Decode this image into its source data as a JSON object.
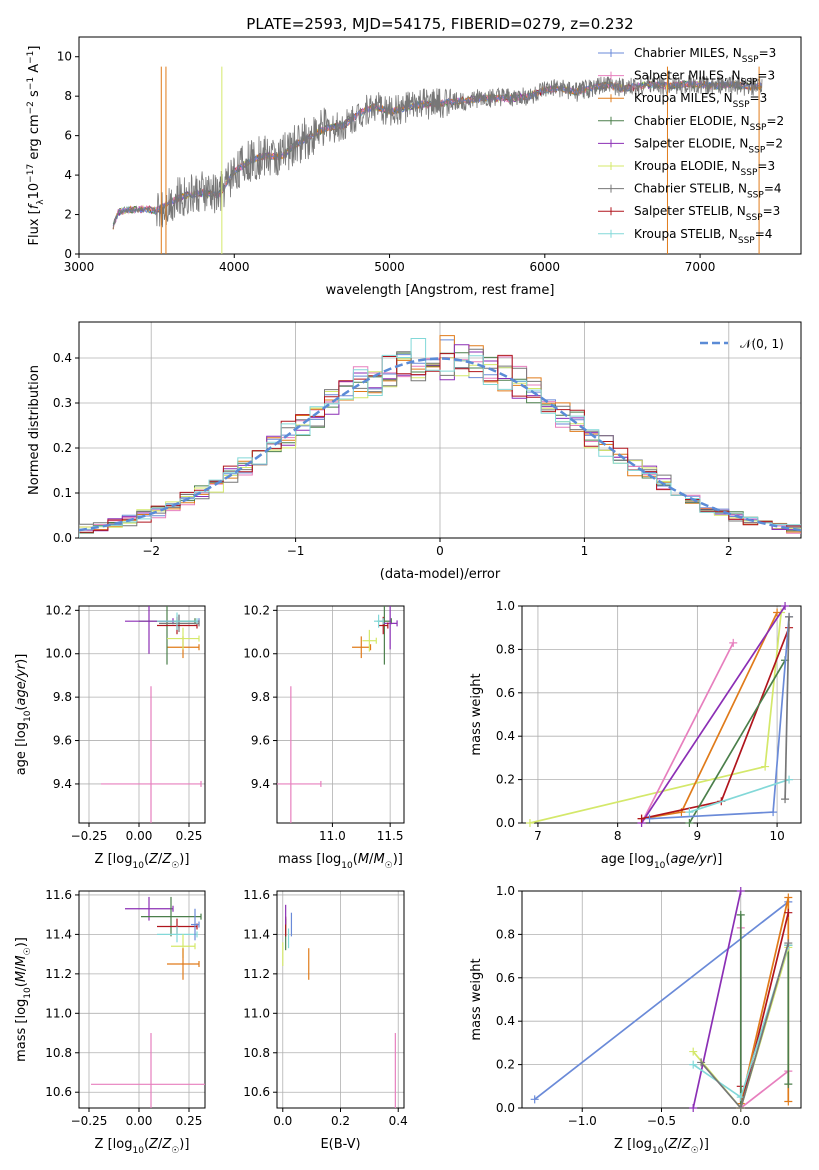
{
  "title": "PLATE=2593, MJD=54175, FIBERID=0279, z=0.232",
  "colors": {
    "chabrier_miles": "#6a8ad8",
    "salpeter_miles": "#e77fbe",
    "kroupa_miles": "#e07b1a",
    "chabrier_elodie": "#4b7f4b",
    "salpeter_elodie": "#8b2fb5",
    "kroupa_elodie": "#d4e86a",
    "chabrier_stelib": "#777777",
    "salpeter_stelib": "#b0151d",
    "kroupa_stelib": "#82d8d8",
    "normal": "#5b8bd6"
  },
  "chart_data": [
    {
      "type": "line",
      "id": "spectrum",
      "xlabel": "wavelength [Angstrom, rest frame]",
      "ylabel": "Flux [f_λ 10^-17 erg cm^-2 s^-1 A^-1]",
      "xlim": [
        3000,
        7650
      ],
      "ylim": [
        0,
        11
      ],
      "xticks": [
        "3000",
        "4000",
        "5000",
        "6000",
        "7000"
      ],
      "yticks": [
        "0",
        "2",
        "4",
        "6",
        "8",
        "10"
      ],
      "legend_position": "right",
      "legend": [
        {
          "name": "Chabrier MILES",
          "nssp": "3"
        },
        {
          "name": "Salpeter MILES",
          "nssp": "3"
        },
        {
          "name": "Kroupa MILES",
          "nssp": "3"
        },
        {
          "name": "Chabrier ELODIE",
          "nssp": "2"
        },
        {
          "name": "Salpeter ELODIE",
          "nssp": "2"
        },
        {
          "name": "Kroupa ELODIE",
          "nssp": "3"
        },
        {
          "name": "Chabrier STELIB",
          "nssp": "4"
        },
        {
          "name": "Salpeter STELIB",
          "nssp": "3"
        },
        {
          "name": "Kroupa STELIB",
          "nssp": "4"
        }
      ],
      "continuum": [
        [
          3220,
          1.4
        ],
        [
          3250,
          2.1
        ],
        [
          3300,
          2.2
        ],
        [
          3400,
          2.3
        ],
        [
          3500,
          2.2
        ],
        [
          3600,
          2.7
        ],
        [
          3700,
          3.0
        ],
        [
          3800,
          3.1
        ],
        [
          3900,
          3.0
        ],
        [
          4000,
          4.2
        ],
        [
          4100,
          4.7
        ],
        [
          4200,
          5.0
        ],
        [
          4300,
          4.9
        ],
        [
          4400,
          5.6
        ],
        [
          4500,
          6.0
        ],
        [
          4600,
          6.4
        ],
        [
          4700,
          6.5
        ],
        [
          4800,
          7.1
        ],
        [
          4900,
          7.5
        ],
        [
          5000,
          7.2
        ],
        [
          5100,
          7.4
        ],
        [
          5200,
          7.6
        ],
        [
          5300,
          7.6
        ],
        [
          5400,
          7.7
        ],
        [
          5500,
          7.8
        ],
        [
          5600,
          7.9
        ],
        [
          5700,
          7.9
        ],
        [
          5800,
          7.9
        ],
        [
          5900,
          8.0
        ],
        [
          6000,
          8.3
        ],
        [
          6100,
          8.4
        ],
        [
          6200,
          8.2
        ],
        [
          6300,
          8.4
        ],
        [
          6400,
          8.6
        ],
        [
          6500,
          8.4
        ],
        [
          6600,
          8.5
        ],
        [
          6700,
          8.6
        ],
        [
          6800,
          8.5
        ],
        [
          6900,
          8.6
        ],
        [
          7000,
          8.6
        ],
        [
          7100,
          8.5
        ],
        [
          7200,
          8.6
        ],
        [
          7300,
          8.5
        ],
        [
          7400,
          8.5
        ]
      ]
    },
    {
      "type": "histogram",
      "id": "residuals",
      "xlabel": "(data-model)/error",
      "ylabel": "Normed distribution",
      "xlim": [
        -2.5,
        2.5
      ],
      "ylim": [
        0,
        0.48
      ],
      "xticks": [
        "−2",
        "−1",
        "0",
        "1",
        "2"
      ],
      "yticks": [
        "0.0",
        "0.1",
        "0.2",
        "0.3",
        "0.4"
      ],
      "legend_position": "top-right",
      "legend": [
        "𝒩(0, 1)"
      ],
      "bin_width": 0.1
    },
    {
      "type": "scatter",
      "id": "z_age",
      "xlabel": "Z [log10(Z/Z☉)]",
      "ylabel": "age [log10(age/yr)]",
      "xlim": [
        -0.3,
        0.33
      ],
      "ylim": [
        9.22,
        10.22
      ],
      "xticks": [
        "−0.25",
        "0.00",
        "0.25"
      ],
      "yticks": [
        "9.4",
        "9.6",
        "9.8",
        "10.0",
        "10.2"
      ],
      "points": [
        {
          "model": "salpeter_miles",
          "x": 0.06,
          "xerr": 0.25,
          "y": 9.4,
          "yerr": 0.45
        },
        {
          "model": "chabrier_miles",
          "x": 0.2,
          "xerr": 0.1,
          "y": 10.15,
          "yerr": 0.03
        },
        {
          "model": "kroupa_miles",
          "x": 0.22,
          "xerr": 0.08,
          "y": 10.03,
          "yerr": 0.05
        },
        {
          "model": "chabrier_elodie",
          "x": 0.14,
          "xerr": 0.14,
          "y": 10.15,
          "yerr": 0.2
        },
        {
          "model": "salpeter_elodie",
          "x": 0.05,
          "xerr": 0.12,
          "y": 10.15,
          "yerr": 0.15
        },
        {
          "model": "kroupa_elodie",
          "x": 0.22,
          "xerr": 0.08,
          "y": 10.07,
          "yerr": 0.05
        },
        {
          "model": "chabrier_stelib",
          "x": 0.2,
          "xerr": 0.1,
          "y": 10.14,
          "yerr": 0.04
        },
        {
          "model": "salpeter_stelib",
          "x": 0.19,
          "xerr": 0.1,
          "y": 10.13,
          "yerr": 0.04
        },
        {
          "model": "kroupa_stelib",
          "x": 0.19,
          "xerr": 0.1,
          "y": 10.15,
          "yerr": 0.04
        }
      ]
    },
    {
      "type": "scatter",
      "id": "mass_age",
      "xlabel": "mass [log10(M/M☉)]",
      "ylabel": "",
      "xlim": [
        10.52,
        11.62
      ],
      "ylim": [
        9.22,
        10.22
      ],
      "xticks": [
        "11.0",
        "11.5"
      ],
      "yticks": [
        "9.4",
        "9.6",
        "9.8",
        "10.0",
        "10.2"
      ],
      "points": [
        {
          "model": "salpeter_miles",
          "x": 10.64,
          "xerr": 0.26,
          "y": 9.4,
          "yerr": 0.45
        },
        {
          "model": "kroupa_miles",
          "x": 11.25,
          "xerr": 0.08,
          "y": 10.03,
          "yerr": 0.05
        },
        {
          "model": "kroupa_elodie",
          "x": 11.32,
          "xerr": 0.06,
          "y": 10.06,
          "yerr": 0.05
        },
        {
          "model": "chabrier_elodie",
          "x": 11.45,
          "xerr": 0.06,
          "y": 10.15,
          "yerr": 0.2
        },
        {
          "model": "salpeter_elodie",
          "x": 11.5,
          "xerr": 0.06,
          "y": 10.14,
          "yerr": 0.12
        },
        {
          "model": "salpeter_stelib",
          "x": 11.44,
          "xerr": 0.04,
          "y": 10.13,
          "yerr": 0.04
        },
        {
          "model": "kroupa_stelib",
          "x": 11.4,
          "xerr": 0.04,
          "y": 10.15,
          "yerr": 0.03
        }
      ]
    },
    {
      "type": "line",
      "id": "age_weight",
      "xlabel": "age [log10(age/yr)]",
      "ylabel": "mass weight",
      "xlim": [
        6.8,
        10.3
      ],
      "ylim": [
        0,
        1.0
      ],
      "xticks": [
        "7",
        "8",
        "9",
        "10"
      ],
      "yticks": [
        "0.0",
        "0.2",
        "0.4",
        "0.6",
        "0.8",
        "1.0"
      ],
      "series": [
        {
          "model": "kroupa_elodie",
          "x": [
            6.9,
            9.85,
            10.05
          ],
          "y": [
            0.0,
            0.26,
            0.97
          ]
        },
        {
          "model": "salpeter_miles",
          "x": [
            8.3,
            9.45
          ],
          "y": [
            0.0,
            0.83
          ]
        },
        {
          "model": "kroupa_miles",
          "x": [
            8.3,
            8.8,
            10.0
          ],
          "y": [
            0.02,
            0.05,
            0.97
          ]
        },
        {
          "model": "salpeter_elodie",
          "x": [
            8.3,
            10.1
          ],
          "y": [
            0.0,
            1.0
          ]
        },
        {
          "model": "salpeter_stelib",
          "x": [
            8.3,
            9.3,
            10.15
          ],
          "y": [
            0.02,
            0.1,
            0.9
          ]
        },
        {
          "model": "chabrier_elodie",
          "x": [
            8.9,
            10.1
          ],
          "y": [
            0.0,
            0.75
          ]
        },
        {
          "model": "chabrier_miles",
          "x": [
            8.4,
            9.95,
            10.15
          ],
          "y": [
            0.02,
            0.05,
            0.95
          ]
        },
        {
          "model": "kroupa_stelib",
          "x": [
            8.9,
            10.15
          ],
          "y": [
            0.05,
            0.2
          ]
        },
        {
          "model": "chabrier_stelib",
          "x": [
            10.1,
            10.15
          ],
          "y": [
            0.11,
            0.95
          ]
        }
      ]
    },
    {
      "type": "scatter",
      "id": "z_mass",
      "xlabel": "Z [log10(Z/Z☉)]",
      "ylabel": "mass [log10(M/M☉)]",
      "xlim": [
        -0.3,
        0.33
      ],
      "ylim": [
        10.52,
        11.62
      ],
      "xticks": [
        "−0.25",
        "0.00",
        "0.25"
      ],
      "yticks": [
        "10.6",
        "10.8",
        "11.0",
        "11.2",
        "11.4",
        "11.6"
      ],
      "points": [
        {
          "model": "salpeter_miles",
          "x": 0.06,
          "xerr": 0.3,
          "y": 10.64,
          "yerr": 0.26
        },
        {
          "model": "salpeter_elodie",
          "x": 0.05,
          "xerr": 0.12,
          "y": 11.53,
          "yerr": 0.06
        },
        {
          "model": "chabrier_elodie",
          "x": 0.16,
          "xerr": 0.15,
          "y": 11.49,
          "yerr": 0.1
        },
        {
          "model": "salpeter_stelib",
          "x": 0.19,
          "xerr": 0.1,
          "y": 11.44,
          "yerr": 0.04
        },
        {
          "model": "kroupa_stelib",
          "x": 0.19,
          "xerr": 0.1,
          "y": 11.4,
          "yerr": 0.04
        },
        {
          "model": "kroupa_elodie",
          "x": 0.22,
          "xerr": 0.06,
          "y": 11.34,
          "yerr": 0.06
        },
        {
          "model": "kroupa_miles",
          "x": 0.22,
          "xerr": 0.08,
          "y": 11.25,
          "yerr": 0.08
        },
        {
          "model": "chabrier_miles",
          "x": 0.28,
          "xerr": 0.02,
          "y": 11.45,
          "yerr": 0.08
        }
      ]
    },
    {
      "type": "scatter",
      "id": "ebv_mass",
      "xlabel": "E(B-V)",
      "ylabel": "",
      "xlim": [
        -0.02,
        0.42
      ],
      "ylim": [
        10.52,
        11.62
      ],
      "xticks": [
        "0.0",
        "0.2",
        "0.4"
      ],
      "yticks": [
        "10.6",
        "10.8",
        "11.0",
        "11.2",
        "11.4",
        "11.6"
      ],
      "points": [
        {
          "model": "salpeter_miles",
          "x": 0.39,
          "y": 10.64,
          "yerr": 0.26
        },
        {
          "model": "kroupa_miles",
          "x": 0.09,
          "y": 11.25,
          "yerr": 0.08
        },
        {
          "model": "kroupa_elodie",
          "x": 0.0,
          "y": 11.3,
          "yerr": 0.06
        },
        {
          "model": "chabrier_elodie",
          "x": 0.01,
          "y": 11.4,
          "yerr": 0.08
        },
        {
          "model": "salpeter_stelib",
          "x": 0.01,
          "y": 11.44,
          "yerr": 0.05
        },
        {
          "model": "kroupa_stelib",
          "x": 0.02,
          "y": 11.38,
          "yerr": 0.05
        },
        {
          "model": "chabrier_miles",
          "x": 0.03,
          "y": 11.45,
          "yerr": 0.06
        },
        {
          "model": "salpeter_elodie",
          "x": 0.01,
          "y": 11.5,
          "yerr": 0.05
        }
      ]
    },
    {
      "type": "line",
      "id": "z_weight",
      "xlabel": "Z [log10(Z/Z☉)]",
      "ylabel": "mass weight",
      "xlim": [
        -1.38,
        0.38
      ],
      "ylim": [
        0,
        1.0
      ],
      "xticks": [
        "−1.0",
        "−0.5",
        "0.0"
      ],
      "yticks": [
        "0.0",
        "0.2",
        "0.4",
        "0.6",
        "0.8",
        "1.0"
      ],
      "series": [
        {
          "model": "chabrier_miles",
          "x": [
            -1.3,
            0.3
          ],
          "y": [
            0.04,
            0.95
          ]
        },
        {
          "model": "salpeter_elodie",
          "x": [
            -0.3,
            0.0
          ],
          "y": [
            0.0,
            1.0
          ]
        },
        {
          "model": "salpeter_miles",
          "x": [
            0.0,
            0.0,
            0.3
          ],
          "y": [
            0.83,
            0.0,
            0.17
          ]
        },
        {
          "model": "kroupa_miles",
          "x": [
            0.0,
            0.3,
            0.3
          ],
          "y": [
            0.02,
            0.97,
            0.03
          ]
        },
        {
          "model": "salpeter_stelib",
          "x": [
            0.0,
            0.0,
            0.3
          ],
          "y": [
            0.1,
            0.0,
            0.9
          ]
        },
        {
          "model": "chabrier_elodie",
          "x": [
            0.0,
            0.0,
            0.3,
            0.3
          ],
          "y": [
            0.89,
            0.0,
            0.75,
            0.11
          ]
        },
        {
          "model": "kroupa_elodie",
          "x": [
            -0.3,
            0.0,
            0.3
          ],
          "y": [
            0.26,
            0.0,
            0.74
          ]
        },
        {
          "model": "kroupa_stelib",
          "x": [
            -0.3,
            0.0,
            0.3
          ],
          "y": [
            0.2,
            0.05,
            0.75
          ]
        },
        {
          "model": "chabrier_stelib",
          "x": [
            -0.25,
            0.0,
            0.3
          ],
          "y": [
            0.21,
            0.0,
            0.76
          ]
        }
      ]
    }
  ]
}
